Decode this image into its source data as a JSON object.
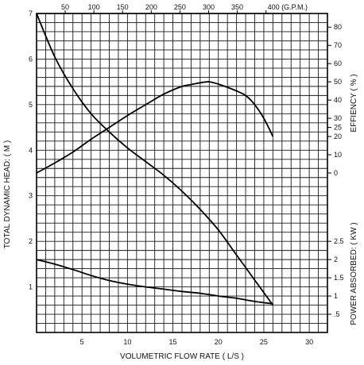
{
  "chart_data": {
    "type": "line",
    "xlabel": "VOLUMETRIC FLOW RATE ( L/S )",
    "ylabel_left": "TOTAL DYNAMIC HEAD: ( M )",
    "ylabel_right_top": "EFFIENCY ( % )",
    "ylabel_right_bottom": "POWER ABSORBED: ( KW )",
    "xlim": [
      0,
      32
    ],
    "ylim": [
      0,
      7
    ],
    "x_ticks": [
      "5",
      "10",
      "15",
      "20",
      "25",
      "30"
    ],
    "y_left_ticks": [
      "1",
      "2",
      "3",
      "4",
      "5",
      "6",
      "7"
    ],
    "top_axis": {
      "ticks": [
        {
          "label": "50",
          "x": 3.15
        },
        {
          "label": "100",
          "x": 6.31
        },
        {
          "label": "150",
          "x": 9.46
        },
        {
          "label": "200",
          "x": 12.62
        },
        {
          "label": "250",
          "x": 15.77
        },
        {
          "label": "300",
          "x": 18.93
        },
        {
          "label": "350",
          "x": 22.08
        },
        {
          "label": "400 (G.P.M.)",
          "x": 25.24
        }
      ]
    },
    "efficiency_axis": {
      "ticks": [
        {
          "label": "0",
          "y": 3.5
        },
        {
          "label": "10",
          "y": 3.9
        },
        {
          "label": "20",
          "y": 4.3
        },
        {
          "label": "25",
          "y": 4.5
        },
        {
          "label": "30",
          "y": 4.7
        },
        {
          "label": "40",
          "y": 5.1
        },
        {
          "label": "50",
          "y": 5.5
        },
        {
          "label": "60",
          "y": 5.9
        },
        {
          "label": "70",
          "y": 6.3
        },
        {
          "label": "80",
          "y": 6.7
        }
      ]
    },
    "power_axis": {
      "ticks": [
        {
          "label": ".5",
          "y": 0.4
        },
        {
          "label": "1",
          "y": 0.8
        },
        {
          "label": "1.5",
          "y": 1.2
        },
        {
          "label": "2",
          "y": 1.6
        },
        {
          "label": "2.5",
          "y": 2.0
        }
      ]
    },
    "series": [
      {
        "key": "head",
        "x": [
          0,
          2,
          4,
          6,
          8,
          10,
          12,
          14,
          16,
          18,
          20,
          22,
          24,
          26
        ],
        "values": [
          7.0,
          6.05,
          5.35,
          4.8,
          4.4,
          4.05,
          3.75,
          3.45,
          3.1,
          2.7,
          2.25,
          1.7,
          1.15,
          0.6
        ]
      },
      {
        "key": "efficiency",
        "x": [
          0,
          2,
          4,
          6,
          8,
          10,
          12,
          14,
          16,
          17,
          18,
          19,
          20,
          21,
          22,
          23,
          24,
          25,
          26
        ],
        "values": [
          3.5,
          3.72,
          3.96,
          4.24,
          4.5,
          4.76,
          5.0,
          5.23,
          5.4,
          5.44,
          5.48,
          5.5,
          5.45,
          5.38,
          5.3,
          5.2,
          5.0,
          4.7,
          4.3
        ]
      },
      {
        "key": "power",
        "x": [
          0,
          2,
          4,
          6,
          8,
          10,
          12,
          14,
          16,
          18,
          20,
          22,
          24,
          26
        ],
        "values": [
          1.6,
          1.5,
          1.38,
          1.25,
          1.14,
          1.06,
          1.0,
          0.95,
          0.9,
          0.86,
          0.8,
          0.75,
          0.68,
          0.63
        ]
      }
    ]
  }
}
